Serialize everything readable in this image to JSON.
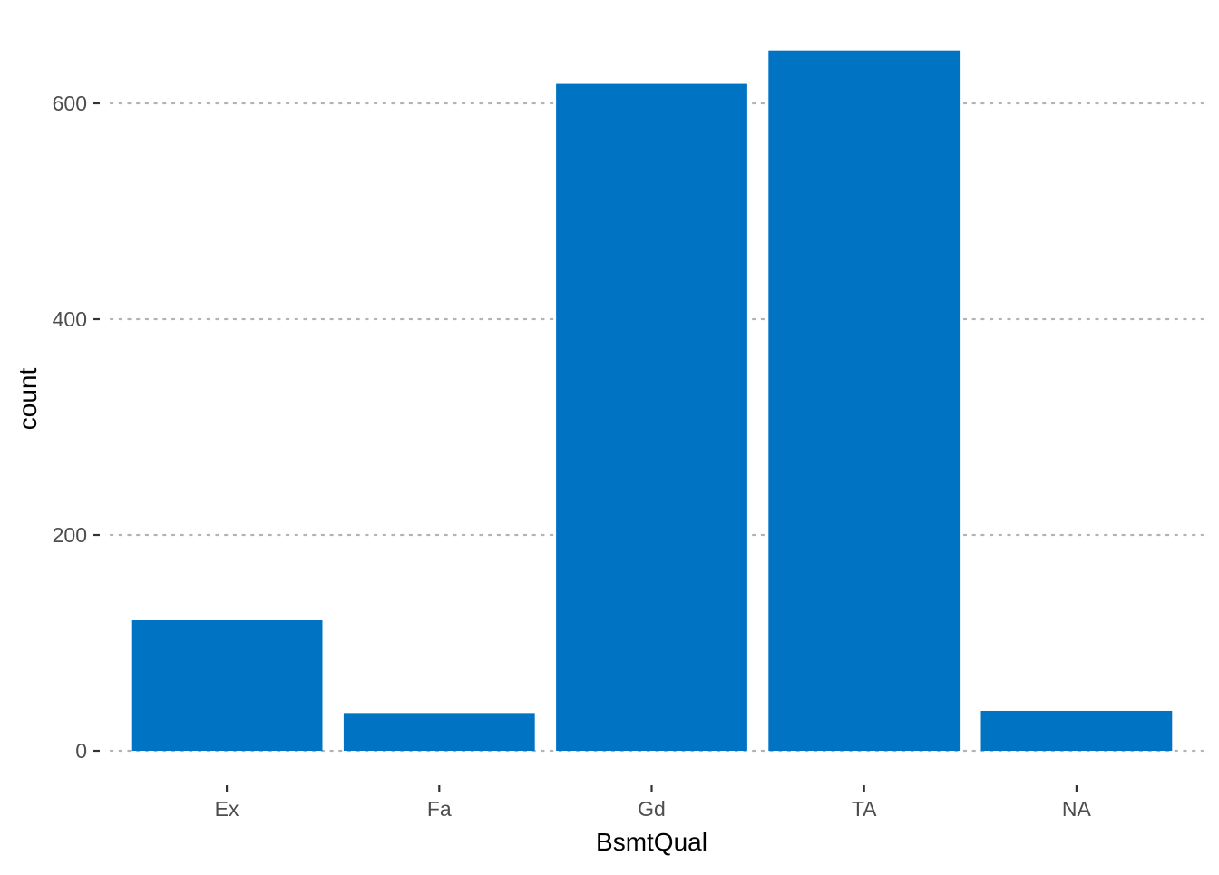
{
  "chart_data": {
    "type": "bar",
    "categories": [
      "Ex",
      "Fa",
      "Gd",
      "TA",
      "NA"
    ],
    "values": [
      121,
      35,
      618,
      649,
      37
    ],
    "xlabel": "BsmtQual",
    "ylabel": "count",
    "ylim": [
      0,
      660
    ],
    "yticks": [
      0,
      200,
      400,
      600
    ],
    "ytick_labels": [
      "0",
      "200",
      "400",
      "600"
    ],
    "grid": "horizontal dotted",
    "legend": "none",
    "bar_color": "#0073C2"
  }
}
